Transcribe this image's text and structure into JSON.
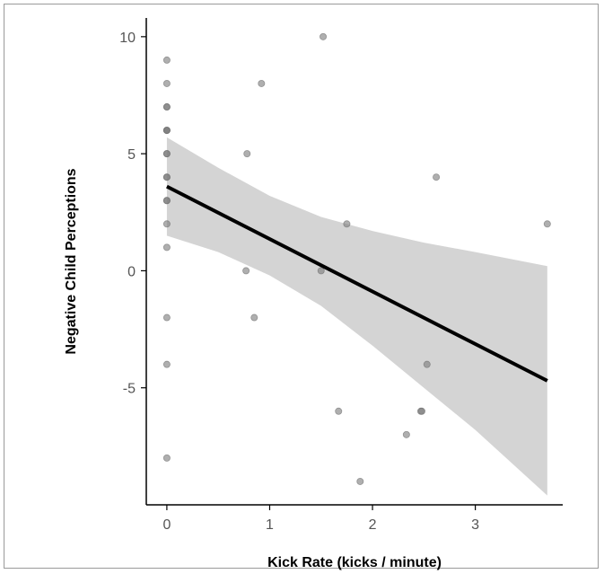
{
  "chart_data": {
    "type": "scatter",
    "title": "",
    "xlabel": "Kick Rate (kicks / minute)",
    "ylabel": "Negative Child Perceptions",
    "xlim": [
      -0.2,
      3.85
    ],
    "ylim": [
      -10,
      10.8
    ],
    "xticks": [
      0,
      1,
      2,
      3
    ],
    "yticks": [
      10,
      5,
      0,
      -5
    ],
    "grid": false,
    "legend": "none",
    "points": [
      {
        "x": 0,
        "y": 9
      },
      {
        "x": 0,
        "y": 8
      },
      {
        "x": 0,
        "y": 7
      },
      {
        "x": 0,
        "y": 7
      },
      {
        "x": 0,
        "y": 6
      },
      {
        "x": 0,
        "y": 6
      },
      {
        "x": 0,
        "y": 6
      },
      {
        "x": 0,
        "y": 5
      },
      {
        "x": 0,
        "y": 5
      },
      {
        "x": 0,
        "y": 4
      },
      {
        "x": 0,
        "y": 4
      },
      {
        "x": 0,
        "y": 3
      },
      {
        "x": 0,
        "y": 3
      },
      {
        "x": 0,
        "y": 2
      },
      {
        "x": 0,
        "y": 1
      },
      {
        "x": 0,
        "y": -2
      },
      {
        "x": 0,
        "y": -4
      },
      {
        "x": 0,
        "y": -8
      },
      {
        "x": 0.78,
        "y": 5
      },
      {
        "x": 0.77,
        "y": 0
      },
      {
        "x": 0.85,
        "y": -2
      },
      {
        "x": 0.92,
        "y": 8
      },
      {
        "x": 1.5,
        "y": 0
      },
      {
        "x": 1.52,
        "y": 10
      },
      {
        "x": 1.67,
        "y": -6
      },
      {
        "x": 1.75,
        "y": 2
      },
      {
        "x": 1.88,
        "y": -9
      },
      {
        "x": 2.33,
        "y": -7
      },
      {
        "x": 2.47,
        "y": -6
      },
      {
        "x": 2.48,
        "y": -6
      },
      {
        "x": 2.53,
        "y": -4
      },
      {
        "x": 2.62,
        "y": 4
      },
      {
        "x": 3.7,
        "y": 2
      }
    ],
    "fit_line": {
      "x": [
        0,
        3.7
      ],
      "y": [
        3.6,
        -4.7
      ]
    },
    "confidence_band": {
      "x": [
        0,
        0.5,
        1.0,
        1.5,
        2.0,
        2.5,
        3.0,
        3.7
      ],
      "upper": [
        5.7,
        4.4,
        3.2,
        2.3,
        1.7,
        1.2,
        0.8,
        0.2
      ],
      "lower": [
        1.5,
        0.8,
        -0.2,
        -1.5,
        -3.2,
        -5.0,
        -6.8,
        -9.6
      ]
    },
    "colors": {
      "point_fill": "#7a7a7a",
      "point_stroke": "#6a6a6a",
      "line": "#000000",
      "band": "#d4d4d4",
      "axis": "#000000",
      "tick_label": "#555555"
    }
  }
}
